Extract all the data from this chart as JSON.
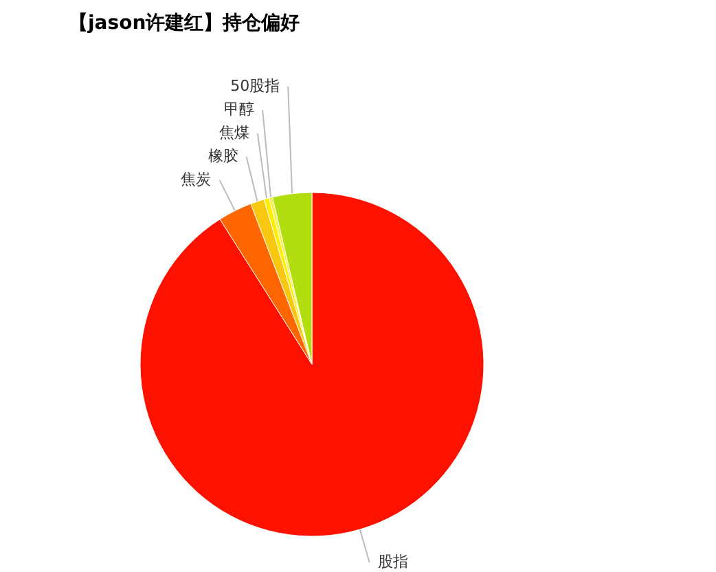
{
  "chart_data": {
    "type": "pie",
    "title": "【jason许建红】持仓偏好",
    "categories": [
      "股指",
      "焦炭",
      "橡胶",
      "焦煤",
      "甲醇",
      "50股指"
    ],
    "values": [
      91.0,
      3.2,
      1.3,
      0.5,
      0.3,
      3.7
    ],
    "colors": [
      "#ff1100",
      "#ff6600",
      "#f8c810",
      "#ffee00",
      "#f4f040",
      "#b2dd11"
    ]
  }
}
